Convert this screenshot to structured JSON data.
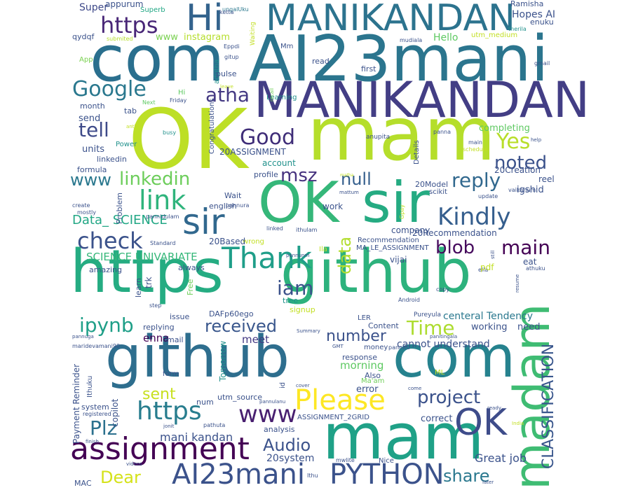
{
  "wordcloud": {
    "words": [
      {
        "text": "com",
        "color": "#2a6f8e"
      },
      {
        "text": "AI23mani",
        "color": "#2b758e"
      },
      {
        "text": "Hi",
        "color": "#33638d"
      },
      {
        "text": "MANIKANDAN",
        "color": "#2c738e"
      },
      {
        "text": "MANIKANDAN",
        "color": "#433e85"
      },
      {
        "text": "OK",
        "color": "#bddf26"
      },
      {
        "text": "mam",
        "color": "#b5de2b"
      },
      {
        "text": "OK",
        "color": "#35b779"
      },
      {
        "text": "sir",
        "color": "#25ab82"
      },
      {
        "text": "sir",
        "color": "#31688e"
      },
      {
        "text": "https",
        "color": "#25ac82"
      },
      {
        "text": "github",
        "color": "#2db27d"
      },
      {
        "text": "github",
        "color": "#2e6e8e"
      },
      {
        "text": "com",
        "color": "#26828e"
      },
      {
        "text": "mam",
        "color": "#1fa187"
      },
      {
        "text": "OK",
        "color": "#3e4c8a"
      },
      {
        "text": "madam",
        "color": "#3fbc73"
      },
      {
        "text": "https",
        "color": "#482677"
      },
      {
        "text": "https",
        "color": "#287d8e"
      },
      {
        "text": "www",
        "color": "#481f70"
      },
      {
        "text": "Please",
        "color": "#fde725"
      },
      {
        "text": "assignment",
        "color": "#440154"
      },
      {
        "text": "AI23mani",
        "color": "#3b528b"
      },
      {
        "text": "PYTHON",
        "color": "#3b528b"
      },
      {
        "text": "Google",
        "color": "#2a788e"
      },
      {
        "text": "tell",
        "color": "#3e4a89"
      },
      {
        "text": "atha",
        "color": "#443983"
      },
      {
        "text": "Good",
        "color": "#3f2d78"
      },
      {
        "text": "Yes",
        "color": "#b8de29"
      },
      {
        "text": "noted",
        "color": "#3b528b"
      },
      {
        "text": "www",
        "color": "#2a788e"
      },
      {
        "text": "linkedin",
        "color": "#6ccd5a"
      },
      {
        "text": "link",
        "color": "#2fb47c"
      },
      {
        "text": "msz",
        "color": "#46327e"
      },
      {
        "text": "null",
        "color": "#355f8d"
      },
      {
        "text": "reply",
        "color": "#31688e"
      },
      {
        "text": "Kindly",
        "color": "#355e8d"
      },
      {
        "text": "check",
        "color": "#3b528b"
      },
      {
        "text": "Thank",
        "color": "#1f9e89"
      },
      {
        "text": "data",
        "color": "#b2dd2d"
      },
      {
        "text": "blob",
        "color": "#460a5d"
      },
      {
        "text": "main",
        "color": "#440154"
      },
      {
        "text": "iam",
        "color": "#3b528b"
      },
      {
        "text": "ipynb",
        "color": "#1f9f88"
      },
      {
        "text": "received",
        "color": "#39568c"
      },
      {
        "text": "Time",
        "color": "#addc30"
      },
      {
        "text": "number",
        "color": "#3b528b"
      },
      {
        "text": "sent",
        "color": "#c8e020"
      },
      {
        "text": "project",
        "color": "#3b528b"
      },
      {
        "text": "Plz",
        "color": "#2c718e"
      },
      {
        "text": "Audio",
        "color": "#3b528b"
      },
      {
        "text": "Dear",
        "color": "#d5e21a"
      },
      {
        "text": "share",
        "color": "#2a788e"
      },
      {
        "text": "CLASSIFICATION",
        "color": "#39568c"
      },
      {
        "text": "Data_ SCIENCE",
        "color": "#22a785"
      },
      {
        "text": "SCIENCE UNIVARIATE",
        "color": "#35b779"
      },
      {
        "text": "cannot understand",
        "color": "#3b528b"
      },
      {
        "text": "centeral Tendency",
        "color": "#2a788e"
      },
      {
        "text": "enna",
        "color": "#440154"
      },
      {
        "text": "meet",
        "color": "#443983"
      },
      {
        "text": "morning",
        "color": "#5ec962"
      },
      {
        "text": "mani kandan",
        "color": "#3b528b"
      },
      {
        "text": "Great job",
        "color": "#3b528b"
      },
      {
        "text": "20system",
        "color": "#3b528b"
      },
      {
        "text": "Ma'am",
        "color": "#6ece58"
      },
      {
        "text": "Super",
        "color": "#3e4989"
      },
      {
        "text": "Superb",
        "color": "#22a785"
      },
      {
        "text": "ungalUku",
        "color": "#2a788e"
      },
      {
        "text": "Ramisha",
        "color": "#3b528b"
      },
      {
        "text": "Hopes AI",
        "color": "#3b528b"
      },
      {
        "text": "enuku",
        "color": "#3b528b"
      },
      {
        "text": "instagram",
        "color": "#b5de2b"
      },
      {
        "text": "www",
        "color": "#7ad151"
      },
      {
        "text": "submited",
        "color": "#b5de2b"
      },
      {
        "text": "Waiting",
        "color": "#c2df23"
      },
      {
        "text": "ketta",
        "color": "#3b528b"
      },
      {
        "text": "qydqf",
        "color": "#3b528b"
      },
      {
        "text": "Hello",
        "color": "#5ec962"
      },
      {
        "text": "utm_medium",
        "color": "#c2df23"
      },
      {
        "text": "therila",
        "color": "#21918c"
      },
      {
        "text": "mudiala",
        "color": "#3b528b"
      },
      {
        "text": "App",
        "color": "#7ad151"
      },
      {
        "text": "Eppdi",
        "color": "#3b528b"
      },
      {
        "text": "gitup",
        "color": "#3b528b"
      },
      {
        "text": "Mm",
        "color": "#3b528b"
      },
      {
        "text": "read",
        "color": "#3b528b"
      },
      {
        "text": "first",
        "color": "#3b528b"
      },
      {
        "text": "gmail",
        "color": "#3b528b"
      },
      {
        "text": "adutha",
        "color": "#21918c"
      },
      {
        "text": "pulse",
        "color": "#3b528b"
      },
      {
        "text": "Learning",
        "color": "#21918c"
      },
      {
        "text": "leave",
        "color": "#c2df23"
      },
      {
        "text": "recall",
        "color": "#6ece58"
      },
      {
        "text": "Hi",
        "color": "#5ec962"
      },
      {
        "text": "Next",
        "color": "#5ec962"
      },
      {
        "text": "Friday",
        "color": "#3b528b"
      },
      {
        "text": "month",
        "color": "#3b528b"
      },
      {
        "text": "tab",
        "color": "#3b528b"
      },
      {
        "text": "send",
        "color": "#3b528b"
      },
      {
        "text": "Congratulations",
        "color": "#3b528b"
      },
      {
        "text": "completing",
        "color": "#5ec962"
      },
      {
        "text": "units",
        "color": "#3b528b"
      },
      {
        "text": "Power",
        "color": "#21918c"
      },
      {
        "text": "linkedin",
        "color": "#3b528b"
      },
      {
        "text": "formula",
        "color": "#3b528b"
      },
      {
        "text": "20ASSIGNMENT",
        "color": "#3b528b"
      },
      {
        "text": "account",
        "color": "#21918c"
      },
      {
        "text": "busy",
        "color": "#21918c"
      },
      {
        "text": "panna",
        "color": "#3b528b"
      },
      {
        "text": "anupita",
        "color": "#3b528b"
      },
      {
        "text": "Details",
        "color": "#3b528b"
      },
      {
        "text": "main",
        "color": "#3b528b"
      },
      {
        "text": "20Creation",
        "color": "#3b528b"
      },
      {
        "text": "help",
        "color": "#3b528b"
      },
      {
        "text": "schedule",
        "color": "#c2df23"
      },
      {
        "text": "reel",
        "color": "#3b528b"
      },
      {
        "text": "igshid",
        "color": "#3b528b"
      },
      {
        "text": "vaikanum",
        "color": "#3b528b"
      },
      {
        "text": "20Model",
        "color": "#3b528b"
      },
      {
        "text": "scikit",
        "color": "#3b528b"
      },
      {
        "text": "update",
        "color": "#3b528b"
      },
      {
        "text": "mattum",
        "color": "#3b528b"
      },
      {
        "text": "matha",
        "color": "#c2df23"
      },
      {
        "text": "profile",
        "color": "#3b528b"
      },
      {
        "text": "Wait",
        "color": "#3b528b"
      },
      {
        "text": "english",
        "color": "#3b528b"
      },
      {
        "text": "pannura",
        "color": "#3b528b"
      },
      {
        "text": "create",
        "color": "#3b528b"
      },
      {
        "text": "mostly",
        "color": "#3b528b"
      },
      {
        "text": "Problem",
        "color": "#3b528b"
      },
      {
        "text": "pannidulam",
        "color": "#3b528b"
      },
      {
        "text": "work",
        "color": "#3b528b"
      },
      {
        "text": "company",
        "color": "#3b528b"
      },
      {
        "text": "20Recommendation",
        "color": "#3b528b"
      },
      {
        "text": "Gpay",
        "color": "#c2df23"
      },
      {
        "text": "linked",
        "color": "#3b528b"
      },
      {
        "text": "ithulam",
        "color": "#3b528b"
      },
      {
        "text": "Standard",
        "color": "#3b528b"
      },
      {
        "text": "wrong",
        "color": "#c2df23"
      },
      {
        "text": "20Based",
        "color": "#3b528b"
      },
      {
        "text": "Recommendation",
        "color": "#3b528b"
      },
      {
        "text": "MA_LE_ASSIGNMENT",
        "color": "#3b528b"
      },
      {
        "text": "amazing",
        "color": "#3b528b"
      },
      {
        "text": "always",
        "color": "#3b528b"
      },
      {
        "text": "Ila",
        "color": "#c2df23"
      },
      {
        "text": "vijai",
        "color": "#3b528b"
      },
      {
        "text": "pannunm",
        "color": "#3b528b"
      },
      {
        "text": "eat",
        "color": "#3b528b"
      },
      {
        "text": "athuku",
        "color": "#3b528b"
      },
      {
        "text": "ella",
        "color": "#3b528b"
      },
      {
        "text": "pdf",
        "color": "#c2df23"
      },
      {
        "text": "still",
        "color": "#3b528b"
      },
      {
        "text": "resume",
        "color": "#3b528b"
      },
      {
        "text": "Free",
        "color": "#6ece58"
      },
      {
        "text": "learn",
        "color": "#3b528b"
      },
      {
        "text": "trk",
        "color": "#3b528b"
      },
      {
        "text": "step",
        "color": "#3b528b"
      },
      {
        "text": "issue",
        "color": "#3b528b"
      },
      {
        "text": "DAFp60ego",
        "color": "#3b528b"
      },
      {
        "text": "tree",
        "color": "#21918c"
      },
      {
        "text": "signup",
        "color": "#c2df23"
      },
      {
        "text": "Android",
        "color": "#3b528b"
      },
      {
        "text": "copy",
        "color": "#3b528b"
      },
      {
        "text": "Pureyula",
        "color": "#3b528b"
      },
      {
        "text": "LER",
        "color": "#3b528b"
      },
      {
        "text": "Content",
        "color": "#3b528b"
      },
      {
        "text": "working",
        "color": "#3b528b"
      },
      {
        "text": "need",
        "color": "#3b528b"
      },
      {
        "text": "replying",
        "color": "#3b528b"
      },
      {
        "text": "pannuga",
        "color": "#3b528b"
      },
      {
        "text": "Summary",
        "color": "#3b528b"
      },
      {
        "text": "mail",
        "color": "#3b528b"
      },
      {
        "text": "panitingala",
        "color": "#3b528b"
      },
      {
        "text": "maridevamani90",
        "color": "#3b528b"
      },
      {
        "text": "money",
        "color": "#3b528b"
      },
      {
        "text": "pannitu",
        "color": "#3b528b"
      },
      {
        "text": "GMT",
        "color": "#3b528b"
      },
      {
        "text": "response",
        "color": "#3b528b"
      },
      {
        "text": "Tomorrow",
        "color": "#21918c"
      },
      {
        "text": "Payment Reminder",
        "color": "#3b528b"
      },
      {
        "text": "Ithuku",
        "color": "#3b528b"
      },
      {
        "text": "form",
        "color": "#3b528b"
      },
      {
        "text": "num",
        "color": "#3b528b"
      },
      {
        "text": "utm_source",
        "color": "#3b528b"
      },
      {
        "text": "error",
        "color": "#3b528b"
      },
      {
        "text": "Also",
        "color": "#3b528b"
      },
      {
        "text": "ML",
        "color": "#c2df23"
      },
      {
        "text": "id",
        "color": "#3b528b"
      },
      {
        "text": "cover",
        "color": "#3b528b"
      },
      {
        "text": "come",
        "color": "#3b528b"
      },
      {
        "text": "system",
        "color": "#3b528b"
      },
      {
        "text": "copilot",
        "color": "#3b528b"
      },
      {
        "text": "registered",
        "color": "#3b528b"
      },
      {
        "text": "analysis",
        "color": "#3b528b"
      },
      {
        "text": "pannulanu",
        "color": "#3b528b"
      },
      {
        "text": "ASSIGNMENT_2GRID",
        "color": "#3b528b"
      },
      {
        "text": "correct",
        "color": "#3b528b"
      },
      {
        "text": "ready",
        "color": "#3b528b"
      },
      {
        "text": "jonit",
        "color": "#3b528b"
      },
      {
        "text": "pathuta",
        "color": "#3b528b"
      },
      {
        "text": "India",
        "color": "#c2df23"
      },
      {
        "text": "finish",
        "color": "#3b528b"
      },
      {
        "text": "videos",
        "color": "#3b528b"
      },
      {
        "text": "mwlite",
        "color": "#3b528b"
      },
      {
        "text": "Nice",
        "color": "#3b528b"
      },
      {
        "text": "Ithu",
        "color": "#3b528b"
      },
      {
        "text": "later",
        "color": "#3b528b"
      },
      {
        "text": "MAC",
        "color": "#3b528b"
      },
      {
        "text": "antha",
        "color": "#c2df23"
      },
      {
        "text": "appurum",
        "color": "#3b528b"
      }
    ]
  }
}
